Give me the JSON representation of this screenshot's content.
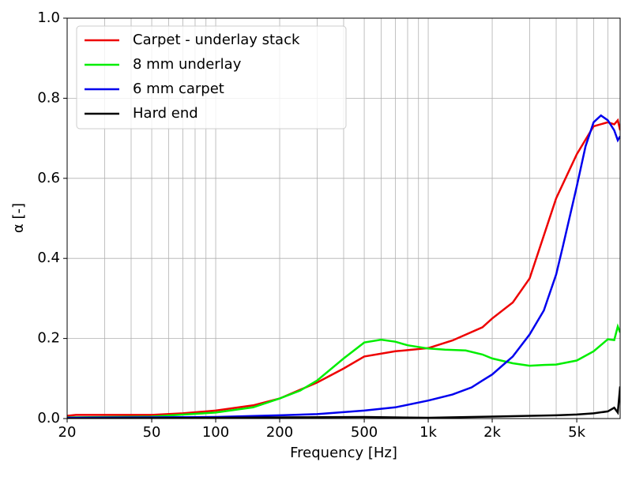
{
  "chart_data": {
    "type": "line",
    "xlabel": "Frequency [Hz]",
    "ylabel": "α [-]",
    "xscale": "log",
    "xlim": [
      20,
      8000
    ],
    "ylim": [
      0,
      1.0
    ],
    "grid": true,
    "legend": "upper left",
    "xticks": [
      20,
      50,
      100,
      200,
      500,
      {
        "value": 1000,
        "label": "1k"
      },
      {
        "value": 2000,
        "label": "2k"
      },
      {
        "value": 5000,
        "label": "5k"
      }
    ],
    "xminorticks": [
      30,
      40,
      60,
      70,
      80,
      90,
      300,
      400,
      600,
      700,
      800,
      900,
      3000,
      4000,
      6000,
      7000
    ],
    "yticks": [
      {
        "value": 0,
        "label": "0.0"
      },
      {
        "value": 0.2,
        "label": "0.2"
      },
      {
        "value": 0.4,
        "label": "0.4"
      },
      {
        "value": 0.6,
        "label": "0.6"
      },
      {
        "value": 0.8,
        "label": "0.8"
      },
      {
        "value": 1.0,
        "label": "1.0"
      }
    ],
    "series": [
      {
        "name": "Carpet - underlay stack",
        "color": "#ee0000",
        "x": [
          20,
          22,
          30,
          50,
          70,
          100,
          150,
          200,
          300,
          400,
          500,
          700,
          1000,
          1300,
          1800,
          2000,
          2500,
          3000,
          4000,
          5000,
          6000,
          7000,
          7500,
          7800,
          8000
        ],
        "values": [
          0.007,
          0.009,
          0.009,
          0.009,
          0.013,
          0.02,
          0.033,
          0.05,
          0.09,
          0.125,
          0.155,
          0.168,
          0.176,
          0.195,
          0.228,
          0.25,
          0.29,
          0.35,
          0.55,
          0.66,
          0.73,
          0.74,
          0.735,
          0.745,
          0.72
        ]
      },
      {
        "name": "8 mm underlay",
        "color": "#00ee00",
        "x": [
          20,
          50,
          100,
          150,
          200,
          250,
          300,
          400,
          500,
          600,
          700,
          800,
          1000,
          1200,
          1500,
          1800,
          2000,
          2500,
          3000,
          3500,
          4000,
          5000,
          6000,
          7000,
          7500,
          7800,
          8000
        ],
        "values": [
          0.003,
          0.005,
          0.015,
          0.028,
          0.05,
          0.07,
          0.095,
          0.15,
          0.19,
          0.197,
          0.192,
          0.183,
          0.175,
          0.172,
          0.17,
          0.16,
          0.15,
          0.138,
          0.132,
          0.134,
          0.135,
          0.145,
          0.168,
          0.198,
          0.196,
          0.23,
          0.215
        ]
      },
      {
        "name": "6 mm carpet",
        "color": "#0000ee",
        "x": [
          20,
          100,
          200,
          300,
          500,
          700,
          1000,
          1300,
          1600,
          1800,
          2000,
          2500,
          3000,
          3500,
          4000,
          4300,
          5000,
          5500,
          6000,
          6500,
          7000,
          7500,
          7800,
          8000
        ],
        "values": [
          0.002,
          0.004,
          0.008,
          0.011,
          0.02,
          0.028,
          0.045,
          0.06,
          0.078,
          0.095,
          0.11,
          0.155,
          0.21,
          0.27,
          0.36,
          0.43,
          0.58,
          0.68,
          0.74,
          0.757,
          0.745,
          0.72,
          0.695,
          0.705
        ]
      },
      {
        "name": "Hard end",
        "color": "#000000",
        "x": [
          20,
          500,
          1000,
          2000,
          4000,
          5000,
          6000,
          7000,
          7500,
          7800,
          8000
        ],
        "values": [
          0.0,
          0.004,
          0.002,
          0.005,
          0.008,
          0.01,
          0.013,
          0.018,
          0.027,
          0.015,
          0.08
        ]
      }
    ]
  }
}
